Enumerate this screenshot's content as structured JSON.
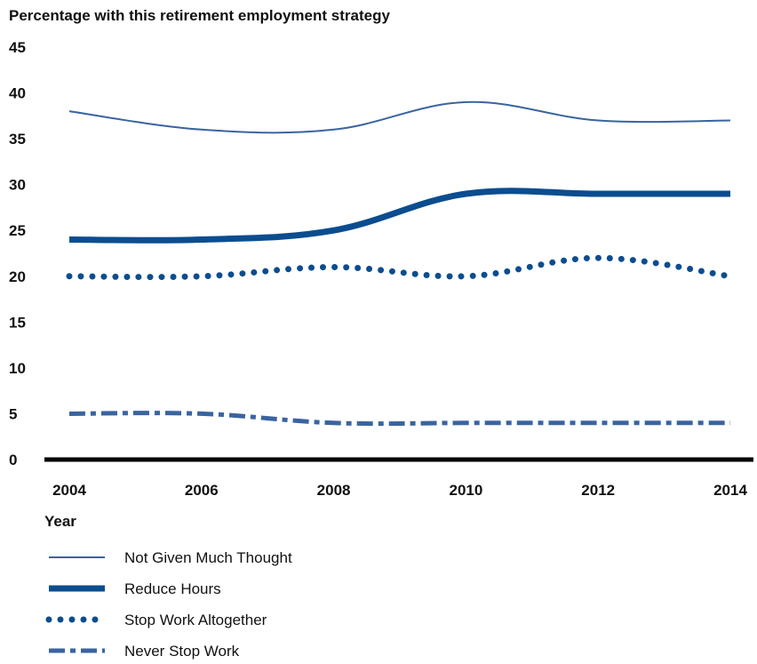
{
  "chart_data": {
    "type": "line",
    "title": "",
    "ylabel": "Percentage with this retirement employment strategy",
    "xlabel": "Year",
    "x": [
      2004,
      2006,
      2008,
      2010,
      2012,
      2014
    ],
    "ylim": [
      0,
      45
    ],
    "yticks": [
      0,
      5,
      10,
      15,
      20,
      25,
      30,
      35,
      40,
      45
    ],
    "grid": false,
    "legend_position": "bottom",
    "series": [
      {
        "name": "Not Given Much Thought",
        "values": [
          38,
          36,
          36,
          39,
          37,
          37
        ],
        "style": "thin",
        "color": "#3a64a0"
      },
      {
        "name": "Reduce Hours",
        "values": [
          24,
          24,
          25,
          29,
          29,
          29
        ],
        "style": "thick",
        "color": "#0b4d8f"
      },
      {
        "name": "Stop Work Altogether",
        "values": [
          20,
          20,
          21,
          20,
          22,
          20
        ],
        "style": "dotted",
        "color": "#0b4d8f"
      },
      {
        "name": "Never Stop Work",
        "values": [
          5,
          5,
          4,
          4,
          4,
          4
        ],
        "style": "dashdot",
        "color": "#3a64a0"
      }
    ]
  }
}
